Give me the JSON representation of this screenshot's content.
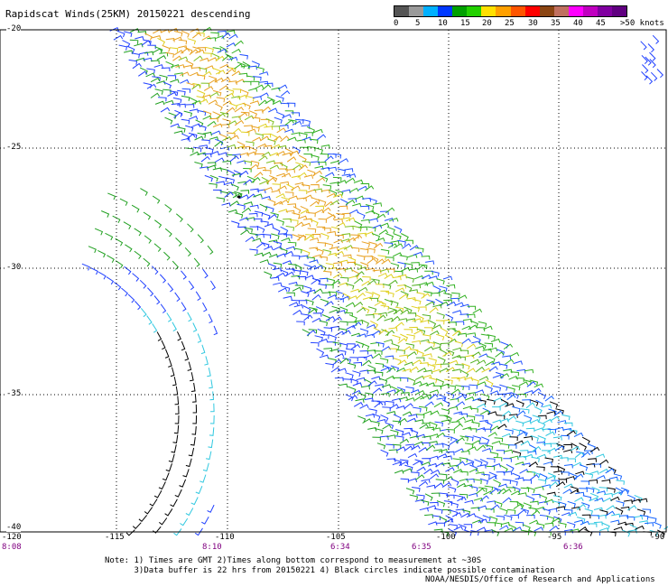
{
  "title": "Rapidscat Winds(25KM) 20150221 descending",
  "legend": {
    "colors": [
      "#555555",
      "#9a9a9a",
      "#00b0ff",
      "#0038ff",
      "#00a000",
      "#22d000",
      "#ffe000",
      "#ffa000",
      "#ff5500",
      "#ff0000",
      "#8b4513",
      "#c07060",
      "#ff00ff",
      "#c000c0",
      "#8000a0",
      "#600080"
    ],
    "labels": [
      "0",
      "5",
      "10",
      "15",
      "20",
      "25",
      "30",
      "35",
      "40",
      "45",
      ">50 knots"
    ]
  },
  "map": {
    "lat_labels": [
      "-20",
      "-25",
      "-30",
      "-35",
      "-40"
    ],
    "lon_labels": [
      "-120",
      "-115",
      "-110",
      "-105",
      "-100",
      "-95",
      "-90"
    ],
    "time_labels": [
      "8:08",
      "8:10",
      "6:34",
      "6:35",
      "6:36"
    ],
    "extent": {
      "lon_min": -120,
      "lon_max": -90,
      "lat_min": -40,
      "lat_max": -20
    }
  },
  "notes": [
    "Note: 1) Times are GMT 2)Times along bottom correspond to measurement at ~30S",
    "      3)Data buffer is 22 hrs from 20150221 4) Black circles indicate possible contamination"
  ],
  "credit": "NOAA/NESDIS/Office of Research and Applications"
}
